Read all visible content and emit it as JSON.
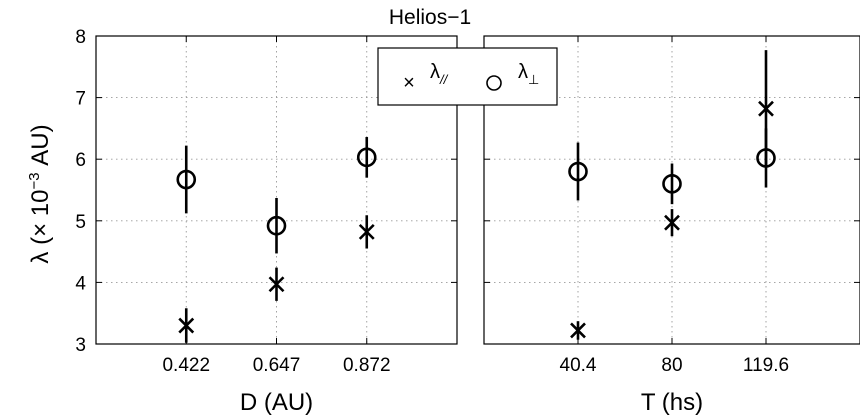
{
  "chart_data": {
    "type": "scatter",
    "title": "Helios−1",
    "ylabel_base": "λ (× 10",
    "ylabel_exp": "−3",
    "ylabel_unit": " AU)",
    "ylim": [
      3,
      8
    ],
    "yticks": [
      "3",
      "4",
      "5",
      "6",
      "7",
      "8"
    ],
    "grid": true,
    "legend_position": "top-center",
    "legend": {
      "par_symbol": "×",
      "par_base": "λ",
      "par_sub": "//",
      "perp_symbol": "○",
      "perp_base": "λ",
      "perp_sub": "⊥"
    },
    "panels": [
      {
        "xlabel": "D (AU)",
        "categories": [
          "0.422",
          "0.647",
          "0.872"
        ],
        "series": [
          {
            "marker": "x",
            "values": [
              3.3,
              3.97,
              4.82
            ],
            "errors": [
              0.28,
              0.27,
              0.27
            ]
          },
          {
            "marker": "o",
            "values": [
              5.67,
              4.92,
              6.03
            ],
            "errors": [
              0.55,
              0.45,
              0.33
            ]
          }
        ]
      },
      {
        "xlabel": "T (hs)",
        "categories": [
          "40.4",
          "80",
          "119.6"
        ],
        "series": [
          {
            "marker": "x",
            "values": [
              3.22,
              4.97,
              6.82
            ],
            "errors": [
              0.15,
              0.22,
              0.95
            ]
          },
          {
            "marker": "o",
            "values": [
              5.8,
              5.6,
              6.02
            ],
            "errors": [
              0.47,
              0.33,
              0.48
            ]
          }
        ]
      }
    ]
  }
}
